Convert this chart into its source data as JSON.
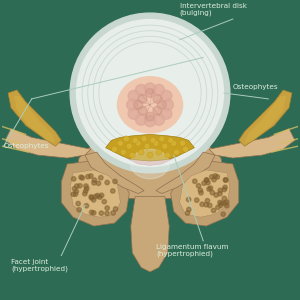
{
  "background_color": "#2d6b55",
  "labels": {
    "intervertebral_disk": "Intervertebral disk\n(bulging)",
    "osteophytes_left": "Osteophytes",
    "osteophytes_right": "Osteophytes",
    "facet_joint": "Facet joint\n(hypertrophied)",
    "ligamentum_flavum": "Ligamentum flavum\n(hypertrophied)"
  },
  "label_color": "#ddeedd",
  "line_color": "#aaccbb",
  "colors": {
    "disk_outer_rim": "#c8d8d0",
    "disk_white": "#e8eeea",
    "disk_inner": "#f0c8b0",
    "nucleus_vein": "#d8a090",
    "vertebra_main": "#c8a878",
    "vertebra_light": "#d8b888",
    "osteophyte": "#c8a040",
    "yellow_lig": "#c8a020",
    "yellow_lig_bright": "#d4b030",
    "pink_tissue": "#e0b8b8",
    "bone_spongy": "#b89060",
    "bone_dot": "#806030",
    "nerve": "#d4c060",
    "facet_outer": "#c0a070",
    "facet_inner": "#d8b880"
  }
}
